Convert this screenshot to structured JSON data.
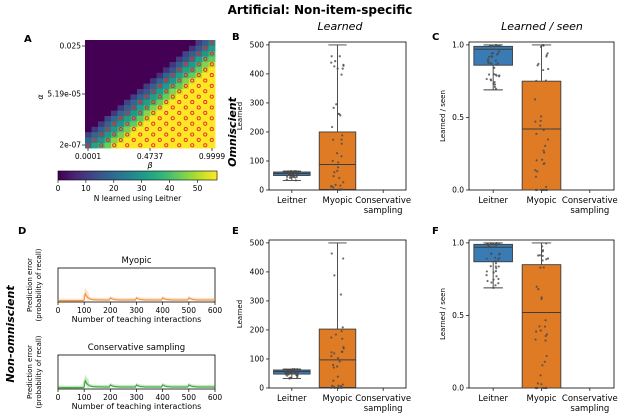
{
  "figure": {
    "title": "Artificial: Non-item-specific",
    "row_labels": {
      "top": "Omniscient",
      "bottom": "Non-omniscient"
    },
    "panel_letters": [
      "A",
      "B",
      "C",
      "D",
      "E",
      "F"
    ],
    "column_titles": {
      "learned": "Learned",
      "learned_seen": "Learned / seen"
    }
  },
  "colors": {
    "leitner": "#3a7bb3",
    "myopic": "#e07b25",
    "cons_orange": "#f28a2e",
    "cons_green": "#2ca02c",
    "marker": "#e8262a",
    "heat_low": "#440154",
    "heat_high": "#fde725"
  },
  "chart_data": [
    {
      "id": "A",
      "type": "heatmap",
      "xlabel": "β",
      "ylabel": "α",
      "x_ticks": [
        "0.0001",
        "0.4737",
        "0.9999"
      ],
      "y_ticks": [
        "0.025",
        "5.19e-05",
        "2e-07"
      ],
      "colorbar": {
        "label": "N learned using Leitner",
        "ticks": [
          0,
          10,
          20,
          30,
          40,
          50
        ],
        "range": [
          0,
          57
        ]
      },
      "grid_size": 20
    },
    {
      "id": "B",
      "type": "box",
      "title": "Learned",
      "ylabel": "Learned",
      "categories": [
        "Leitner",
        "Myopic",
        "Conservative sampling"
      ],
      "ylim": [
        0,
        510
      ],
      "yticks": [
        0,
        100,
        200,
        300,
        400,
        500
      ],
      "boxes": [
        {
          "name": "Leitner",
          "q1": 50,
          "median": 57,
          "q3": 62,
          "whisker_low": 33,
          "whisker_high": 65
        },
        {
          "name": "Myopic",
          "q1": 2,
          "median": 88,
          "q3": 200,
          "whisker_low": 0,
          "whisker_high": 500
        }
      ]
    },
    {
      "id": "C",
      "type": "box",
      "title": "Learned / seen",
      "ylabel": "Learned / seen",
      "categories": [
        "Leitner",
        "Myopic",
        "Conservative sampling"
      ],
      "ylim": [
        0,
        1.02
      ],
      "yticks": [
        0.0,
        0.5,
        1.0
      ],
      "boxes": [
        {
          "name": "Leitner",
          "q1": 0.86,
          "median": 0.97,
          "q3": 0.99,
          "whisker_low": 0.69,
          "whisker_high": 1.0
        },
        {
          "name": "Myopic",
          "q1": 0.0,
          "median": 0.42,
          "q3": 0.75,
          "whisker_low": 0.0,
          "whisker_high": 1.0
        }
      ]
    },
    {
      "id": "D",
      "type": "line",
      "panels": [
        {
          "title": "Myopic",
          "color": "orange"
        },
        {
          "title": "Conservative sampling",
          "color": "green"
        }
      ],
      "xlabel": "Number of teaching interactions",
      "ylabel": "Prediction error (probability of recall)",
      "xlim": [
        0,
        600
      ],
      "xticks": [
        0,
        100,
        200,
        300,
        400,
        500,
        600
      ],
      "ylim": [
        0,
        1
      ],
      "spike_x": 100,
      "periodic_bumps": [
        200,
        300,
        400,
        500
      ]
    },
    {
      "id": "E",
      "type": "box",
      "ylabel": "Learned",
      "categories": [
        "Leitner",
        "Myopic",
        "Conservative sampling"
      ],
      "ylim": [
        0,
        510
      ],
      "yticks": [
        0,
        100,
        200,
        300,
        400,
        500
      ],
      "boxes": [
        {
          "name": "Leitner",
          "q1": 48,
          "median": 57,
          "q3": 62,
          "whisker_low": 33,
          "whisker_high": 65
        },
        {
          "name": "Myopic",
          "q1": 2,
          "median": 97,
          "q3": 203,
          "whisker_low": 0,
          "whisker_high": 500
        }
      ]
    },
    {
      "id": "F",
      "type": "box",
      "ylabel": "Learned / seen",
      "categories": [
        "Leitner",
        "Myopic",
        "Conservative sampling"
      ],
      "ylim": [
        0,
        1.02
      ],
      "yticks": [
        0.0,
        0.5,
        1.0
      ],
      "boxes": [
        {
          "name": "Leitner",
          "q1": 0.87,
          "median": 0.97,
          "q3": 0.99,
          "whisker_low": 0.69,
          "whisker_high": 1.0
        },
        {
          "name": "Myopic",
          "q1": 0.0,
          "median": 0.52,
          "q3": 0.85,
          "whisker_low": 0.0,
          "whisker_high": 1.0
        }
      ]
    }
  ]
}
